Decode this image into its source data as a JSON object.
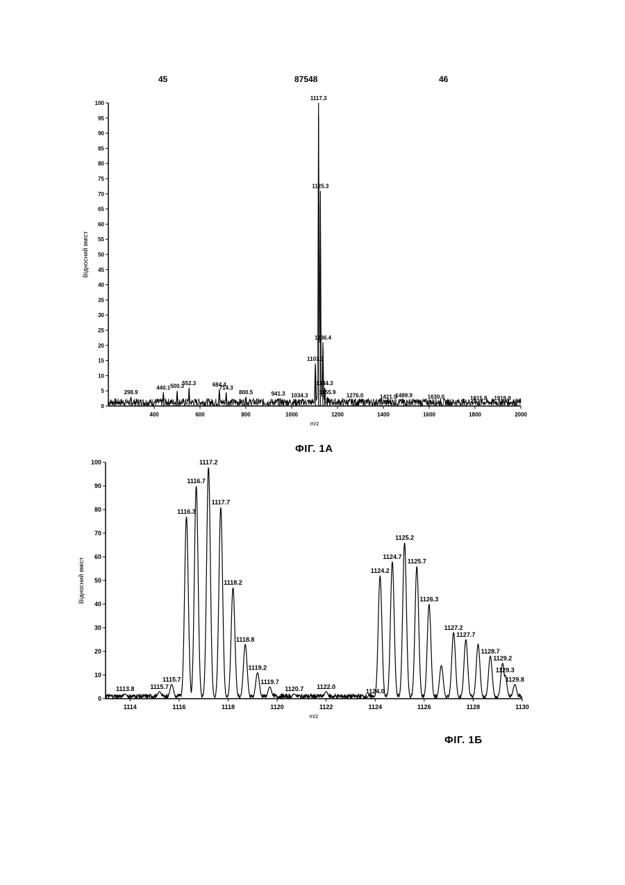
{
  "header": {
    "left": "45",
    "center": "87548",
    "right": "46"
  },
  "captions": {
    "fig_a": "ФІГ. 1А",
    "fig_b": "ФІГ. 1Б"
  },
  "chart_data": [
    {
      "type": "line",
      "title": "",
      "xlabel": "m/z",
      "ylabel": "Відносний вміст",
      "xlim": [
        200,
        2000
      ],
      "ylim": [
        0,
        100
      ],
      "x_ticks": [
        400,
        600,
        800,
        1000,
        1200,
        1400,
        1600,
        1800,
        2000
      ],
      "y_ticks": [
        0,
        5,
        10,
        15,
        20,
        25,
        30,
        35,
        40,
        45,
        50,
        55,
        60,
        65,
        70,
        75,
        80,
        85,
        90,
        95,
        100
      ],
      "peaks": [
        {
          "x": 298.9,
          "y": 3,
          "label": "298.9"
        },
        {
          "x": 440.1,
          "y": 4.5,
          "label": "440.1"
        },
        {
          "x": 500.3,
          "y": 5,
          "label": "500.3"
        },
        {
          "x": 552.3,
          "y": 6,
          "label": "552.3"
        },
        {
          "x": 684.4,
          "y": 5.5,
          "label": "684.4"
        },
        {
          "x": 714.3,
          "y": 4.5,
          "label": "714.3"
        },
        {
          "x": 800.5,
          "y": 3,
          "label": "800.5"
        },
        {
          "x": 941.3,
          "y": 2.5,
          "label": "941.3"
        },
        {
          "x": 1034.3,
          "y": 2,
          "label": "1034.3"
        },
        {
          "x": 1103.3,
          "y": 14,
          "label": "1103.3"
        },
        {
          "x": 1117.3,
          "y": 100,
          "label": "1117.3"
        },
        {
          "x": 1125.3,
          "y": 71,
          "label": "1125.3"
        },
        {
          "x": 1136.4,
          "y": 21,
          "label": "1136.4"
        },
        {
          "x": 1144.3,
          "y": 6,
          "label": "1144.3"
        },
        {
          "x": 1155.9,
          "y": 3,
          "label": "1155.9"
        },
        {
          "x": 1276.0,
          "y": 2,
          "label": "1276.0"
        },
        {
          "x": 1421.9,
          "y": 1.5,
          "label": "1421.9"
        },
        {
          "x": 1489.9,
          "y": 2,
          "label": "1489.9"
        },
        {
          "x": 1630.0,
          "y": 1.5,
          "label": "1630.0"
        },
        {
          "x": 1815.8,
          "y": 1,
          "label": "1815.8"
        },
        {
          "x": 1919.9,
          "y": 1,
          "label": "1919.9"
        }
      ]
    },
    {
      "type": "line",
      "title": "",
      "xlabel": "m/z",
      "ylabel": "Відносний вміст",
      "xlim": [
        1113,
        1130
      ],
      "ylim": [
        0,
        100
      ],
      "x_ticks": [
        1114,
        1116,
        1118,
        1120,
        1122,
        1124,
        1126,
        1128,
        1130
      ],
      "y_ticks": [
        0,
        10,
        20,
        30,
        40,
        50,
        60,
        70,
        80,
        90,
        100
      ],
      "peaks": [
        {
          "x": 1113.8,
          "y": 2,
          "label": "1113.8"
        },
        {
          "x": 1115.2,
          "y": 3,
          "label": "1115.7"
        },
        {
          "x": 1115.7,
          "y": 6,
          "label": "1115.7"
        },
        {
          "x": 1116.3,
          "y": 77,
          "label": "1116.3"
        },
        {
          "x": 1116.7,
          "y": 90,
          "label": "1116.7"
        },
        {
          "x": 1117.2,
          "y": 98,
          "label": "1117.2"
        },
        {
          "x": 1117.7,
          "y": 81,
          "label": "1117.7"
        },
        {
          "x": 1118.2,
          "y": 47,
          "label": "1118.2"
        },
        {
          "x": 1118.7,
          "y": 23,
          "label": "1118.8"
        },
        {
          "x": 1119.2,
          "y": 11,
          "label": "1119.2"
        },
        {
          "x": 1119.7,
          "y": 5,
          "label": "1119.7"
        },
        {
          "x": 1120.7,
          "y": 2,
          "label": "1120.7"
        },
        {
          "x": 1122.0,
          "y": 3,
          "label": "1122.0"
        },
        {
          "x": 1124.0,
          "y": 1,
          "label": "1124.0"
        },
        {
          "x": 1124.2,
          "y": 52,
          "label": "1124.2"
        },
        {
          "x": 1124.7,
          "y": 58,
          "label": "1124.7"
        },
        {
          "x": 1125.2,
          "y": 66,
          "label": "1125.2"
        },
        {
          "x": 1125.7,
          "y": 56,
          "label": "1125.7"
        },
        {
          "x": 1126.2,
          "y": 40,
          "label": "1126.3"
        },
        {
          "x": 1126.7,
          "y": 14,
          "label": ""
        },
        {
          "x": 1127.2,
          "y": 28,
          "label": "1127.2"
        },
        {
          "x": 1127.7,
          "y": 25,
          "label": "1127.7"
        },
        {
          "x": 1128.2,
          "y": 23,
          "label": ""
        },
        {
          "x": 1128.7,
          "y": 18,
          "label": "1128.7"
        },
        {
          "x": 1129.2,
          "y": 15,
          "label": "1129.2"
        },
        {
          "x": 1129.3,
          "y": 10,
          "label": "1129.3"
        },
        {
          "x": 1129.7,
          "y": 6,
          "label": "1129.8"
        }
      ]
    }
  ]
}
